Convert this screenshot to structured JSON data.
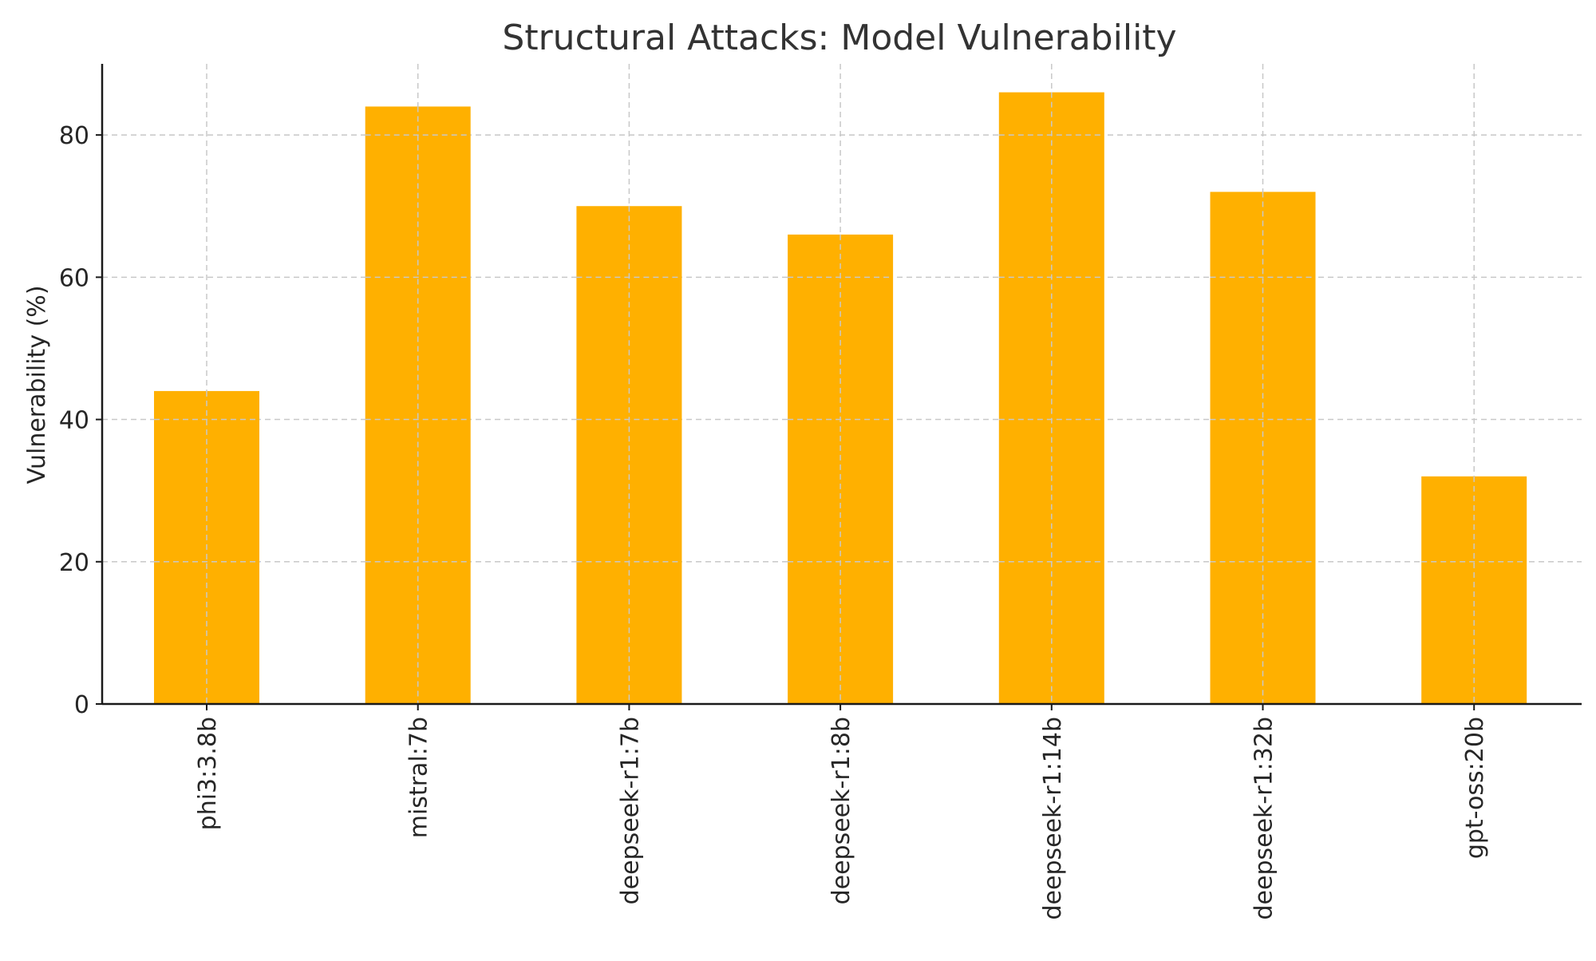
{
  "chart_data": {
    "type": "bar",
    "title": "Structural Attacks: Model Vulnerability",
    "xlabel": "",
    "ylabel": "Vulnerability (%)",
    "categories": [
      "phi3:3.8b",
      "mistral:7b",
      "deepseek-r1:7b",
      "deepseek-r1:8b",
      "deepseek-r1:14b",
      "deepseek-r1:32b",
      "gpt-oss:20b"
    ],
    "values": [
      44,
      84,
      70,
      66,
      86,
      72,
      32
    ],
    "ylim": [
      0,
      90
    ],
    "yticks": [
      0,
      20,
      40,
      60,
      80
    ],
    "grid": true,
    "bar_color": "#ffb000"
  }
}
